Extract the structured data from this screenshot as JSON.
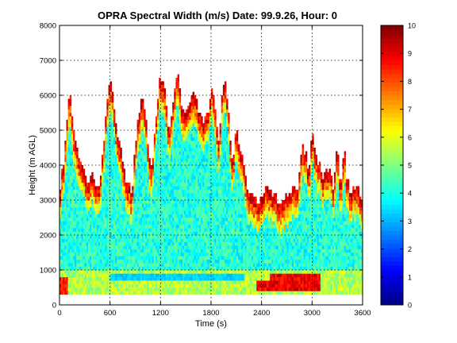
{
  "chart_data": {
    "type": "heatmap",
    "title": "OPRA Spectral Width (m/s)  Date: 99.9.26, Hour: 0",
    "xlabel": "Time (s)",
    "ylabel": "Height (m AGL)",
    "xlim": [
      0,
      3600
    ],
    "ylim": [
      0,
      8000
    ],
    "xticks": [
      0,
      600,
      1200,
      1800,
      2400,
      3000,
      3600
    ],
    "yticks": [
      0,
      1000,
      2000,
      3000,
      4000,
      5000,
      6000,
      7000,
      8000
    ],
    "grid": true,
    "colorbar": {
      "min": 0,
      "max": 10,
      "ticks": [
        0,
        1,
        2,
        3,
        4,
        5,
        6,
        7,
        8,
        9,
        10
      ],
      "colormap": "jet"
    },
    "echo_base_m": 300,
    "echo_top_profile": {
      "time_s": [
        0,
        60,
        90,
        120,
        160,
        200,
        240,
        280,
        330,
        380,
        430,
        480,
        540,
        580,
        620,
        660,
        700,
        760,
        800,
        860,
        920,
        980,
        1020,
        1060,
        1100,
        1150,
        1200,
        1240,
        1300,
        1340,
        1400,
        1440,
        1480,
        1540,
        1600,
        1640,
        1700,
        1760,
        1800,
        1860,
        1900,
        1940,
        1980,
        2020,
        2060,
        2100,
        2160,
        2220,
        2280,
        2340,
        2400,
        2440,
        2480,
        2560,
        2640,
        2700,
        2760,
        2840,
        2880,
        2920,
        2960,
        3000,
        3060,
        3140,
        3200,
        3260,
        3300,
        3340,
        3380,
        3420,
        3460,
        3500,
        3560,
        3600
      ],
      "top_m": [
        3200,
        4200,
        5200,
        6000,
        5200,
        4400,
        4000,
        3900,
        3500,
        3800,
        3300,
        3500,
        5000,
        6000,
        6300,
        5200,
        4600,
        4000,
        3500,
        3200,
        5100,
        6000,
        5500,
        4300,
        3800,
        5400,
        6500,
        6300,
        5000,
        5500,
        6700,
        6000,
        5300,
        5600,
        6100,
        5700,
        5200,
        5400,
        6200,
        5400,
        4500,
        6400,
        6100,
        5000,
        4000,
        5000,
        4300,
        3400,
        3000,
        3000,
        3000,
        3200,
        3300,
        3000,
        2900,
        3100,
        3200,
        3400,
        4500,
        4400,
        3600,
        5000,
        4100,
        3600,
        3900,
        3300,
        4600,
        3300,
        4400,
        3500,
        3000,
        3300,
        3200,
        3000
      ]
    },
    "low_width_layers": [
      {
        "time_range_s": [
          600,
          2200
        ],
        "height_range_m": [
          700,
          900
        ],
        "value": 3
      }
    ],
    "high_width_layers": [
      {
        "time_range_s": [
          2500,
          3100
        ],
        "height_range_m": [
          400,
          900
        ],
        "value": 9.5
      },
      {
        "time_range_s": [
          2350,
          2700
        ],
        "height_range_m": [
          400,
          700
        ],
        "value": 9.5
      },
      {
        "time_range_s": [
          0,
          100
        ],
        "height_range_m": [
          300,
          800
        ],
        "value": 9
      }
    ],
    "notes": "Values reconstructed as a field: interior ~3.5-5 m/s (cyan), rising to 8-10 m/s (orange/red) near the echo top edges and in the lowest layers."
  }
}
